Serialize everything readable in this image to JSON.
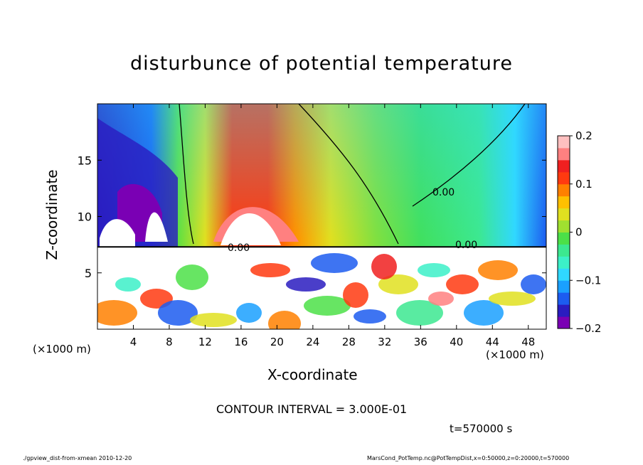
{
  "chart_data": {
    "type": "heatmap",
    "title": "disturbunce of potential temperature",
    "xlabel": "X-coordinate",
    "ylabel": "Z-coordinate",
    "x_unit_left": "(×1000 m)",
    "x_unit_right": "(×1000 m)",
    "xlim": [
      0,
      50
    ],
    "ylim": [
      0,
      20
    ],
    "x_ticks": [
      4,
      8,
      12,
      16,
      20,
      24,
      28,
      32,
      36,
      40,
      44,
      48
    ],
    "y_ticks": [
      5,
      10,
      15
    ],
    "colorbar": {
      "range": [
        -0.2,
        0.2
      ],
      "ticks": [
        {
          "value": 0.2,
          "label": "0.2"
        },
        {
          "value": 0.1,
          "label": "0.1"
        },
        {
          "value": 0.0,
          "label": "0"
        },
        {
          "value": -0.1,
          "label": "−0.1"
        },
        {
          "value": -0.2,
          "label": "−0.2"
        }
      ],
      "colors": [
        "#7a00b4",
        "#2a1cc0",
        "#1c5cf0",
        "#1aa0ff",
        "#30d8ff",
        "#3cf0c8",
        "#3ce890",
        "#4ce048",
        "#a0e030",
        "#e0e020",
        "#ffc000",
        "#ff8000",
        "#ff3a10",
        "#f02020",
        "#ff8080",
        "#ffc0c0"
      ]
    },
    "contour_labels": [
      "0.00",
      "0.00",
      "0.00"
    ],
    "contour_interval": "CONTOUR INTERVAL = 3.000E-01",
    "time": "t=570000 s",
    "grid": false
  },
  "footer": {
    "left": "./gpview_dist-from-xmean  2010-12-20",
    "right": "MarsCond_PotTemp.nc@PotTempDist,x=0:50000,z=0:20000,t=570000"
  }
}
